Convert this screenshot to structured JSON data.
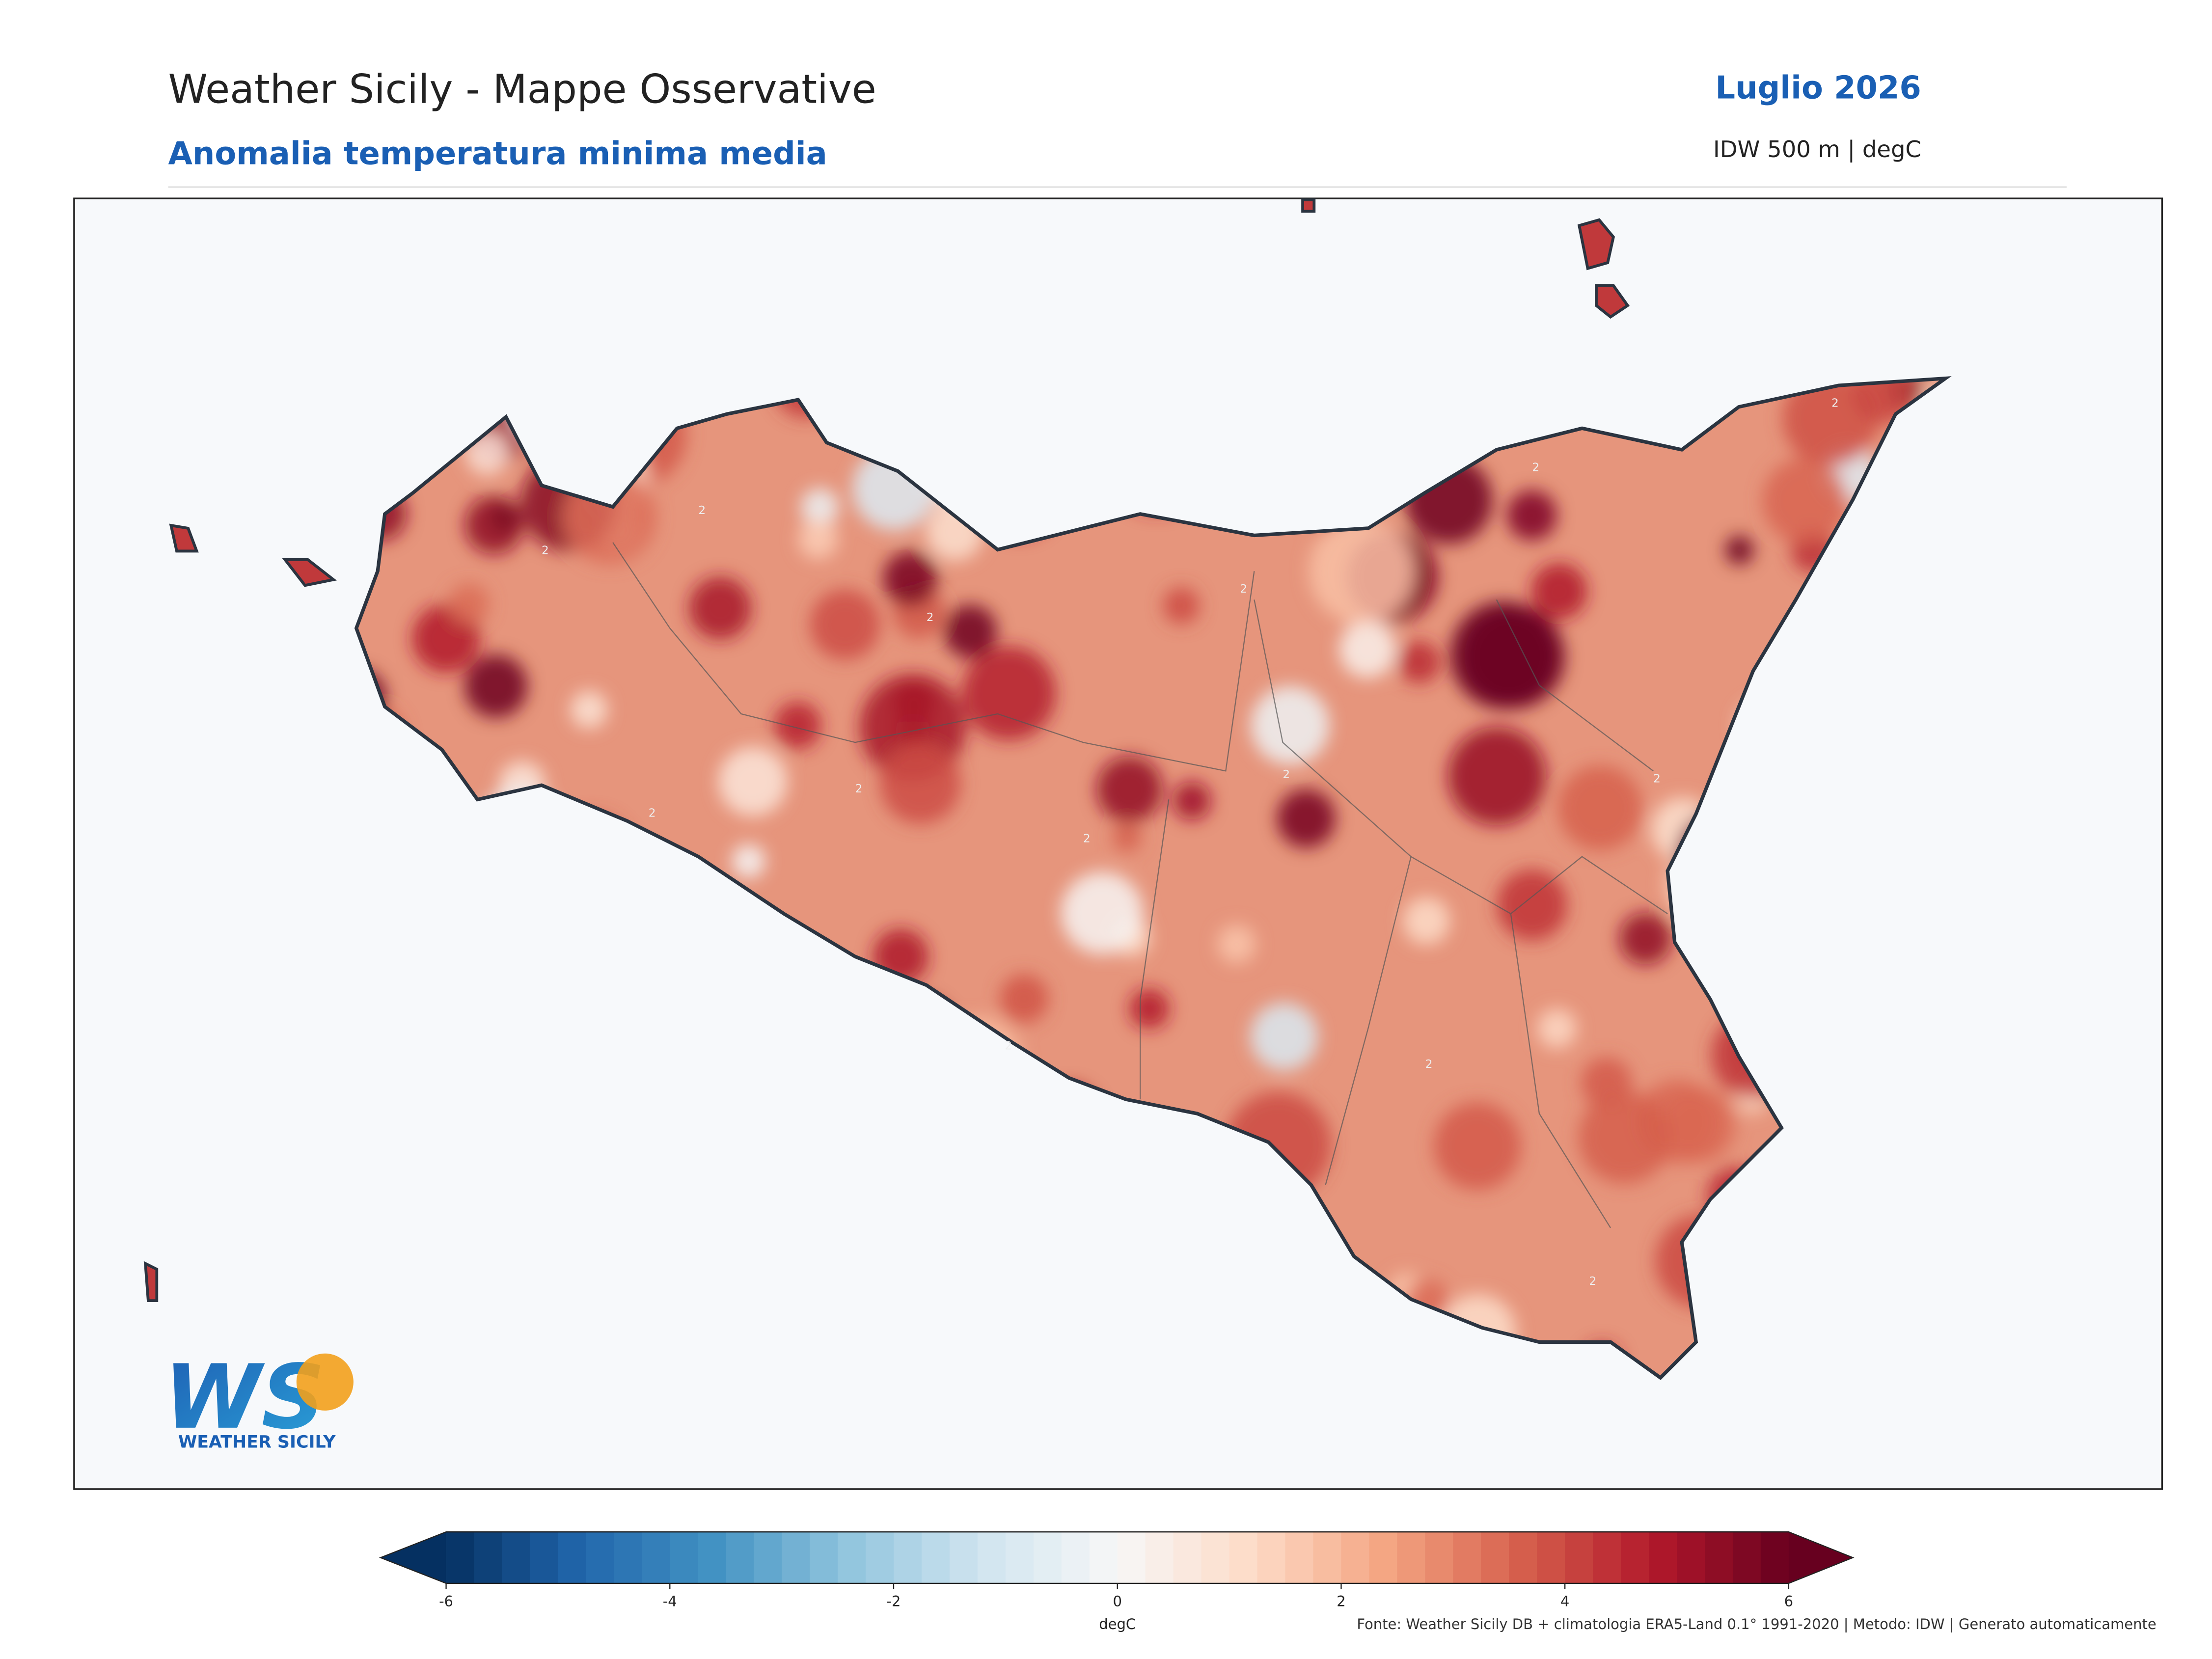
{
  "header": {
    "title": "Weather Sicily - Mappe Osservative",
    "subtitle": "Anomalia temperatura minima media",
    "period": "Luglio 2026",
    "method": "IDW 500 m | degC"
  },
  "map": {
    "contour_level": 2
  },
  "logo": {
    "mark": "WS",
    "name": "WEATHER SICILY"
  },
  "colorbar": {
    "label": "degC",
    "lim": [
      -6,
      6
    ],
    "ticks": [
      -6,
      -4,
      -2,
      0,
      2,
      4,
      6
    ],
    "colormap": [
      "#053061",
      "#2166ac",
      "#4393c3",
      "#92c5de",
      "#d1e5f0",
      "#f7f7f7",
      "#fddbc7",
      "#f4a582",
      "#d6604d",
      "#b2182b",
      "#67001f"
    ]
  },
  "footer": "Fonte: Weather Sicily DB + climatologia ERA5-Land 0.1° 1991-2020 | Metodo: IDW | Generato automaticamente"
}
